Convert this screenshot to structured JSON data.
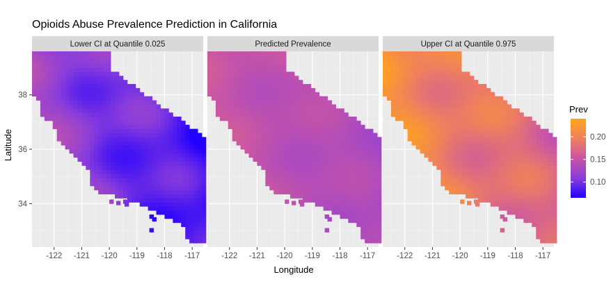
{
  "chart_data": {
    "type": "heatmap",
    "title": "Opioids Abuse Prevalence Prediction in California",
    "xlabel": "Longitude",
    "ylabel": "Latitude",
    "xlim": [
      -122.8,
      -116.6
    ],
    "ylim": [
      32.4,
      39.6
    ],
    "x_ticks": [
      -122,
      -121,
      -120,
      -119,
      -118,
      -117
    ],
    "x_tick_labels": [
      "-122",
      "-121",
      "-120",
      "-119",
      "-118",
      "-117"
    ],
    "y_ticks": [
      34,
      36,
      38
    ],
    "y_tick_labels": [
      "34",
      "36",
      "38"
    ],
    "grid": true,
    "legend": {
      "title": "Prev",
      "placement": "right",
      "min": 0.065,
      "max": 0.24,
      "ticks": [
        0.1,
        0.15,
        0.2
      ],
      "tick_labels": [
        "0.10",
        "0.15",
        "0.20"
      ],
      "colors": [
        "#2200ff",
        "#8a3ddb",
        "#c855a6",
        "#ef7f5e",
        "#ffa61a"
      ]
    },
    "panels": [
      {
        "title": "Lower CI at Quantile 0.025",
        "base": 0.095,
        "variation": 0.022
      },
      {
        "title": "Predicted Prevalence",
        "base": 0.14,
        "variation": 0.01
      },
      {
        "title": "Upper CI at Quantile 0.975",
        "base": 0.185,
        "variation": 0.022
      }
    ]
  }
}
